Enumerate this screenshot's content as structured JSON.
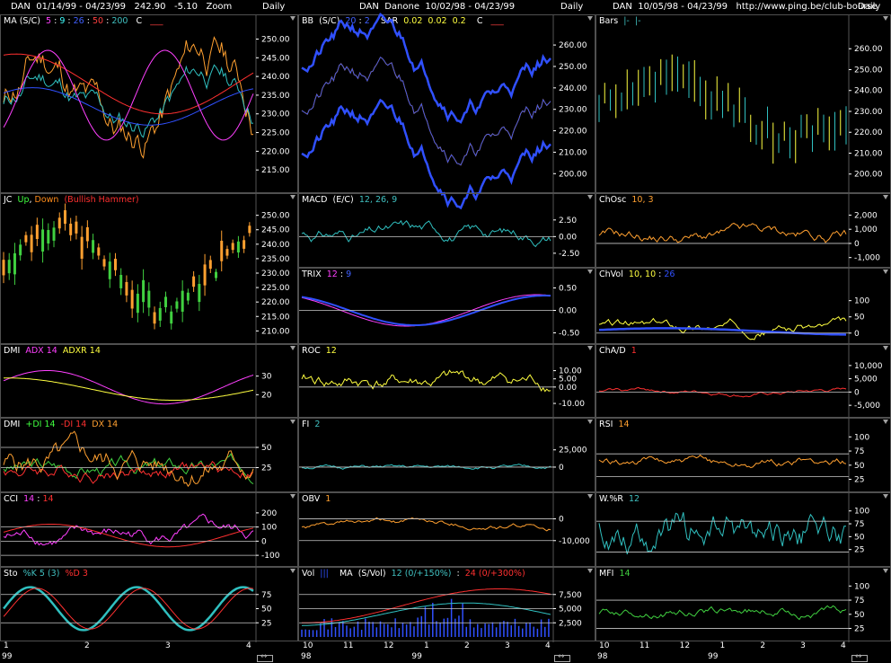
{
  "header": {
    "left": "DAN  01/14/99 - 04/23/99   242.90   -5.10   Zoom",
    "mid": "DAN  Danone  10/02/98 - 04/23/99",
    "right": "DAN  10/05/98 - 04/23/99   http://www.ping.be/club-bourse",
    "daily": "Daily"
  },
  "colors": {
    "yellow": "#ffff40",
    "orange": "#ffa030",
    "red": "#ff3030",
    "blue": "#3050ff",
    "cyan": "#30c0c0",
    "magenta": "#e040e0",
    "green": "#40d040",
    "grid": "#c8c8c8"
  },
  "panels": [
    {
      "id": "ma",
      "title": [
        [
          "MA (S/C)  ",
          "#fff"
        ],
        [
          "5",
          "#ff40ff"
        ],
        [
          " : ",
          "#fff"
        ],
        [
          "9",
          "#40ffff"
        ],
        [
          " : ",
          "#fff"
        ],
        [
          "26",
          "#4060ff"
        ],
        [
          " : ",
          "#fff"
        ],
        [
          "50",
          "#ff4040"
        ],
        [
          " : ",
          "#fff"
        ],
        [
          "200",
          "#40c0c0"
        ],
        [
          "   C   ",
          "#fff"
        ],
        [
          "___",
          "#ff4040"
        ]
      ],
      "ticks": [
        "250.00",
        "245.00",
        "240.00",
        "235.00",
        "230.00",
        "225.00",
        "220.00",
        "215.00"
      ],
      "range": [
        210,
        253
      ]
    },
    {
      "id": "jc",
      "title": [
        [
          "JC  ",
          "#fff"
        ],
        [
          "Up",
          "#40ff40"
        ],
        [
          ", ",
          "#fff"
        ],
        [
          "Down",
          "#ff8c1a"
        ],
        [
          "  (Bullish Hammer)",
          "#ff3030"
        ]
      ],
      "ticks": [
        "250.00",
        "245.00",
        "240.00",
        "235.00",
        "230.00",
        "225.00",
        "220.00",
        "215.00",
        "210.00"
      ],
      "range": [
        207,
        253
      ]
    },
    {
      "id": "dmi1",
      "title": [
        [
          "DMI  ",
          "#fff"
        ],
        [
          "ADX 14",
          "#ff40ff"
        ],
        [
          "  ADXR 14",
          "#ffff40"
        ]
      ],
      "ticks": [
        "30",
        "20"
      ],
      "range": [
        10,
        40
      ]
    },
    {
      "id": "dmi2",
      "title": [
        [
          "DMI  ",
          "#fff"
        ],
        [
          "+DI 14",
          "#40ff40"
        ],
        [
          "  -DI 14",
          "#ff3030"
        ],
        [
          "  DX 14",
          "#ffa030"
        ]
      ],
      "ticks": [
        "50",
        "25"
      ],
      "range": [
        0,
        70
      ]
    },
    {
      "id": "cci",
      "title": [
        [
          "CCI  ",
          "#fff"
        ],
        [
          "14",
          "#ff40ff"
        ],
        [
          " : ",
          "#fff"
        ],
        [
          "14",
          "#ff3030"
        ]
      ],
      "ticks": [
        "200",
        "100",
        "0",
        "-100"
      ],
      "range": [
        -150,
        250
      ]
    },
    {
      "id": "sto",
      "title": [
        [
          "Sto  ",
          "#fff"
        ],
        [
          "%K 5 (3)",
          "#40c0c0"
        ],
        [
          "  %D 3",
          "#ff3030"
        ]
      ],
      "ticks": [
        "75",
        "50",
        "25"
      ],
      "range": [
        0,
        100
      ]
    },
    {
      "id": "bb",
      "title": [
        [
          "BB  (S/C)  ",
          "#fff"
        ],
        [
          "20",
          "#4060ff"
        ],
        [
          " : ",
          "#fff"
        ],
        [
          "2",
          "#4060ff"
        ],
        [
          "    SAR  ",
          "#fff"
        ],
        [
          "0.02",
          "#ffff40"
        ],
        [
          "  0.02",
          "#ffff40"
        ],
        [
          "  0.2",
          "#ffff40"
        ],
        [
          "    C   ",
          "#fff"
        ],
        [
          "___",
          "#ff4040"
        ]
      ],
      "ticks": [
        "260.00",
        "250.00",
        "240.00",
        "230.00",
        "220.00",
        "210.00",
        "200.00"
      ],
      "range": [
        193,
        268
      ]
    },
    {
      "id": "macd",
      "title": [
        [
          "MACD  (E/C)  ",
          "#fff"
        ],
        [
          "12, 26, 9",
          "#40c0c0"
        ]
      ],
      "ticks": [
        "2.50",
        "0.00",
        "-2.50"
      ],
      "range": [
        -4,
        4.5
      ]
    },
    {
      "id": "trix",
      "title": [
        [
          "TRIX  ",
          "#fff"
        ],
        [
          "12",
          "#ff40ff"
        ],
        [
          " : ",
          "#fff"
        ],
        [
          "9",
          "#4060ff"
        ]
      ],
      "ticks": [
        "0.50",
        "0.00",
        "-0.50"
      ],
      "range": [
        -0.65,
        0.65
      ]
    },
    {
      "id": "roc",
      "title": [
        [
          "ROC  ",
          "#fff"
        ],
        [
          "12",
          "#ffff40"
        ]
      ],
      "ticks": [
        "10.00",
        "5.00",
        "0.00",
        "-10.00"
      ],
      "range": [
        -16,
        18
      ]
    },
    {
      "id": "fi",
      "title": [
        [
          "FI  ",
          "#fff"
        ],
        [
          "2",
          "#40c0c0"
        ]
      ],
      "ticks": [
        "25,000",
        "0"
      ],
      "range": [
        -30000,
        52000
      ]
    },
    {
      "id": "oby",
      "title": [
        [
          "OBV  ",
          "#fff"
        ],
        [
          "1",
          "#ffa030"
        ]
      ],
      "ticks": [
        "0",
        "-10,000"
      ],
      "range": [
        -20000,
        6000
      ]
    },
    {
      "id": "vol",
      "title": [
        [
          "Vol  ",
          "#fff"
        ],
        [
          "|||",
          "#3050ff"
        ],
        [
          "    MA  (S/Vol)  ",
          "#fff"
        ],
        [
          "12 (0/+150%)",
          "#40c0c0"
        ],
        [
          "  :  ",
          "#fff"
        ],
        [
          "24 (0/+300%)",
          "#ff3030"
        ]
      ],
      "ticks": [
        "7,500",
        "5,000",
        "2,500"
      ],
      "range": [
        0,
        10000
      ]
    },
    {
      "id": "bars",
      "title": [
        [
          "Bars  ",
          "#fff"
        ],
        [
          "|-",
          "#40c0c0"
        ],
        [
          "  ",
          "#fff"
        ],
        [
          "|-",
          "#40c0c0"
        ]
      ],
      "ticks": [
        "260.00",
        "250.00",
        "240.00",
        "230.00",
        "220.00",
        "210.00",
        "200.00"
      ],
      "range": [
        193,
        270
      ]
    },
    {
      "id": "chosc",
      "title": [
        [
          "ChOsc  ",
          "#fff"
        ],
        [
          "10, 3",
          "#ffa030"
        ]
      ],
      "ticks": [
        "2,000",
        "1,000",
        "0",
        "-1,000"
      ],
      "range": [
        -1400,
        2600
      ]
    },
    {
      "id": "chvol",
      "title": [
        [
          "ChVol  ",
          "#fff"
        ],
        [
          "10, 10",
          "#ffff40"
        ],
        [
          " : ",
          "#fff"
        ],
        [
          "26",
          "#3050ff"
        ]
      ],
      "ticks": [
        "100",
        "50",
        "0"
      ],
      "range": [
        -20,
        160
      ]
    },
    {
      "id": "chad",
      "title": [
        [
          "ChA/D  ",
          "#fff"
        ],
        [
          "1",
          "#ff3030"
        ]
      ],
      "ticks": [
        "10,000",
        "5,000",
        "0",
        "-5,000"
      ],
      "range": [
        -8000,
        13000
      ]
    },
    {
      "id": "rsi",
      "title": [
        [
          "RSI  ",
          "#fff"
        ],
        [
          "14",
          "#ffa030"
        ]
      ],
      "ticks": [
        "100",
        "75",
        "50",
        "25"
      ],
      "range": [
        10,
        110
      ]
    },
    {
      "id": "wr",
      "title": [
        [
          "W.%R  ",
          "#fff"
        ],
        [
          "12",
          "#40c0c0"
        ]
      ],
      "ticks": [
        "100",
        "75",
        "50",
        "25"
      ],
      "range": [
        0,
        110
      ]
    },
    {
      "id": "mfi",
      "title": [
        [
          "MFI  ",
          "#fff"
        ],
        [
          "14",
          "#40d040"
        ]
      ],
      "ticks": [
        "100",
        "75",
        "50",
        "25"
      ],
      "range": [
        10,
        110
      ]
    }
  ],
  "xaxes": {
    "left": {
      "labels": [
        "1",
        "2",
        "3",
        "4"
      ],
      "year": "99"
    },
    "mid": {
      "labels": [
        "10",
        "11",
        "12",
        "1",
        "2",
        "3",
        "4"
      ],
      "year1": "98",
      "year2": "99"
    },
    "right": {
      "labels": [
        "10",
        "11",
        "12",
        "1",
        "2",
        "3",
        "4"
      ],
      "year1": "98",
      "year2": "99"
    }
  }
}
